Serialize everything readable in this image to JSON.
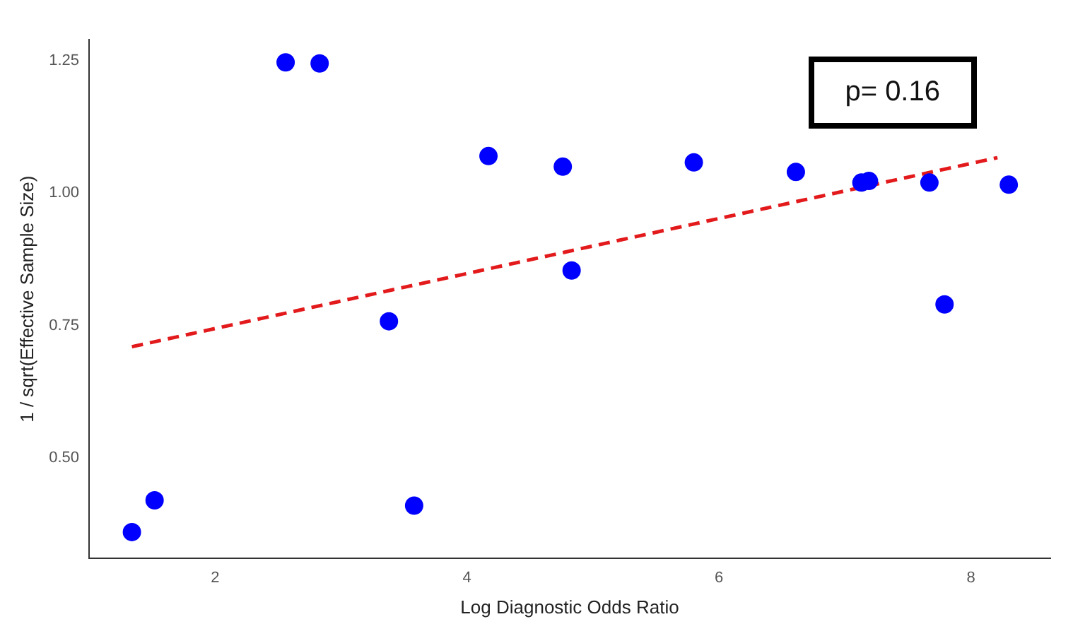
{
  "chart_data": {
    "type": "scatter",
    "xlabel": "Log Diagnostic Odds Ratio",
    "ylabel": "1 / sqrt(Effective Sample Size)",
    "marker": "circle",
    "xlim": [
      1.0,
      8.63
    ],
    "ylim": [
      0.31,
      1.29
    ],
    "xticks": [
      2,
      4,
      6,
      8
    ],
    "yticks": [
      {
        "value": 0.5,
        "label": "0.50"
      },
      1.25,
      {
        "value": 0.75,
        "label": "0.75"
      },
      {
        "value": 1.0,
        "label": "1.00"
      }
    ],
    "series": [
      {
        "color": "#0000ff",
        "x": [
          1.34,
          1.52,
          2.56,
          2.83,
          3.38,
          3.58,
          4.17,
          4.76,
          4.83,
          5.8,
          6.61,
          7.13,
          7.19,
          7.67,
          7.79,
          8.3
        ],
        "values": [
          0.36,
          0.42,
          1.247,
          1.245,
          0.758,
          0.41,
          1.07,
          1.05,
          0.854,
          1.058,
          1.04,
          1.02,
          1.023,
          1.02,
          0.79,
          1.016
        ]
      },
      {
        "type": "line",
        "color": "#e31a1c",
        "line_style": "dashed",
        "marker": "none",
        "x": [
          1.34,
          8.21
        ],
        "values": [
          0.71,
          1.067
        ]
      }
    ],
    "annotations": [
      "p= 0.16"
    ]
  }
}
